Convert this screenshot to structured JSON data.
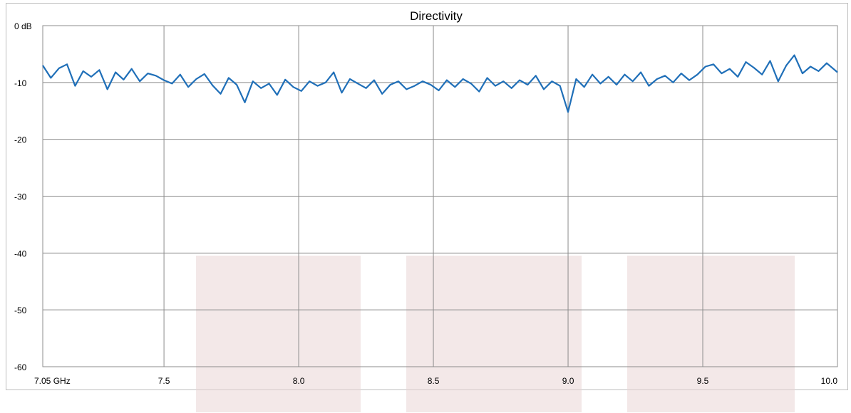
{
  "chart_data": {
    "type": "line",
    "title": "Directivity",
    "xlabel": "",
    "ylabel": "",
    "xlim": [
      7.05,
      10.0
    ],
    "ylim": [
      -60,
      0
    ],
    "y_ticks": [
      {
        "value": 0,
        "label": "0 dB"
      },
      {
        "value": -10,
        "label": "-10"
      },
      {
        "value": -20,
        "label": "-20"
      },
      {
        "value": -30,
        "label": "-30"
      },
      {
        "value": -40,
        "label": "-40"
      },
      {
        "value": -50,
        "label": "-50"
      },
      {
        "value": -60,
        "label": "-60"
      }
    ],
    "x_ticks": [
      {
        "value": 7.05,
        "label": "7.05 GHz"
      },
      {
        "value": 7.5,
        "label": "7.5"
      },
      {
        "value": 8.0,
        "label": "8.0"
      },
      {
        "value": 8.5,
        "label": "8.5"
      },
      {
        "value": 9.0,
        "label": "9.0"
      },
      {
        "value": 9.5,
        "label": "9.5"
      },
      {
        "value": 10.0,
        "label": "10.0"
      }
    ],
    "grid": true,
    "series": [
      {
        "color": "#1f6fb8",
        "x": [
          7.05,
          7.08,
          7.11,
          7.14,
          7.17,
          7.2,
          7.23,
          7.26,
          7.29,
          7.32,
          7.35,
          7.38,
          7.41,
          7.44,
          7.47,
          7.5,
          7.53,
          7.56,
          7.59,
          7.62,
          7.65,
          7.68,
          7.71,
          7.74,
          7.77,
          7.8,
          7.83,
          7.86,
          7.89,
          7.92,
          7.95,
          7.98,
          8.01,
          8.04,
          8.07,
          8.1,
          8.13,
          8.16,
          8.19,
          8.22,
          8.25,
          8.28,
          8.31,
          8.34,
          8.37,
          8.4,
          8.43,
          8.46,
          8.49,
          8.52,
          8.55,
          8.58,
          8.61,
          8.64,
          8.67,
          8.7,
          8.73,
          8.76,
          8.79,
          8.82,
          8.85,
          8.88,
          8.91,
          8.94,
          8.97,
          9.0,
          9.03,
          9.06,
          9.09,
          9.12,
          9.15,
          9.18,
          9.21,
          9.24,
          9.27,
          9.3,
          9.33,
          9.36,
          9.39,
          9.42,
          9.45,
          9.48,
          9.51,
          9.54,
          9.57,
          9.6,
          9.63,
          9.66,
          9.69,
          9.72,
          9.75,
          9.78,
          9.81,
          9.84,
          9.87,
          9.9,
          9.93,
          9.96,
          10.0
        ],
        "y": [
          -7.0,
          -9.2,
          -7.5,
          -6.8,
          -10.6,
          -8.0,
          -9.0,
          -7.8,
          -11.2,
          -8.2,
          -9.5,
          -7.6,
          -9.8,
          -8.4,
          -8.8,
          -9.6,
          -10.2,
          -8.6,
          -10.8,
          -9.4,
          -8.5,
          -10.5,
          -12.0,
          -9.2,
          -10.4,
          -13.5,
          -9.8,
          -11.0,
          -10.2,
          -12.2,
          -9.5,
          -10.8,
          -11.5,
          -9.8,
          -10.6,
          -10.0,
          -8.2,
          -11.8,
          -9.4,
          -10.2,
          -11.0,
          -9.6,
          -12.0,
          -10.4,
          -9.8,
          -11.2,
          -10.6,
          -9.8,
          -10.4,
          -11.4,
          -9.6,
          -10.8,
          -9.4,
          -10.2,
          -11.6,
          -9.2,
          -10.6,
          -9.8,
          -11.0,
          -9.6,
          -10.4,
          -8.8,
          -11.2,
          -9.8,
          -10.6,
          -15.2,
          -9.4,
          -10.8,
          -8.6,
          -10.2,
          -9.0,
          -10.4,
          -8.6,
          -9.8,
          -8.2,
          -10.6,
          -9.4,
          -8.8,
          -10.0,
          -8.4,
          -9.6,
          -8.6,
          -7.2,
          -6.8,
          -8.4,
          -7.6,
          -9.0,
          -6.4,
          -7.4,
          -8.6,
          -6.2,
          -9.8,
          -7.0,
          -5.2,
          -8.4,
          -7.2,
          -8.0,
          -6.6,
          -8.2
        ]
      }
    ],
    "shaded_bands": [
      {
        "x_start": 7.62,
        "x_end": 8.23,
        "y_start": -40.5
      },
      {
        "x_start": 8.4,
        "x_end": 9.05,
        "y_start": -40.5
      },
      {
        "x_start": 9.22,
        "x_end": 9.84,
        "y_start": -40.5
      }
    ]
  }
}
